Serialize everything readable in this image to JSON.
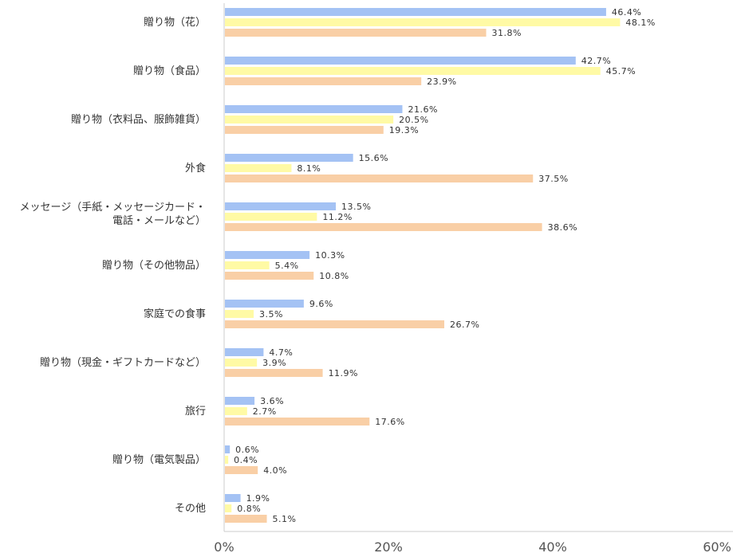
{
  "chart_data": {
    "type": "bar",
    "orientation": "horizontal",
    "categories": [
      [
        "贈り物（花）"
      ],
      [
        "贈り物（食品）"
      ],
      [
        "贈り物（衣料品、服飾雑貨）"
      ],
      [
        "外食"
      ],
      [
        "メッセージ（手紙・メッセージカード・",
        "電話・メールなど）"
      ],
      [
        "贈り物（その他物品）"
      ],
      [
        "家庭での食事"
      ],
      [
        "贈り物（現金・ギフトカードなど）"
      ],
      [
        "旅行"
      ],
      [
        "贈り物（電気製品）"
      ],
      [
        "その他"
      ]
    ],
    "series": [
      {
        "color": "#a4c2f4",
        "values": [
          46.4,
          42.7,
          21.6,
          15.6,
          13.5,
          10.3,
          9.6,
          4.7,
          3.6,
          0.6,
          1.9
        ]
      },
      {
        "color": "#fffaa5",
        "values": [
          48.1,
          45.7,
          20.5,
          8.1,
          11.2,
          5.4,
          3.5,
          3.9,
          2.7,
          0.4,
          0.8
        ]
      },
      {
        "color": "#f9cfa6",
        "values": [
          31.8,
          23.9,
          19.3,
          37.5,
          38.6,
          10.8,
          26.7,
          11.9,
          17.6,
          4.0,
          5.1
        ]
      }
    ],
    "value_suffix": "%",
    "xlim": [
      0,
      60
    ],
    "xticks": [
      0,
      20,
      40,
      60
    ],
    "xtick_labels": [
      "0%",
      "20%",
      "40%",
      "60%"
    ],
    "grid": false,
    "legend": "none",
    "axis_color": "#cccccc"
  }
}
